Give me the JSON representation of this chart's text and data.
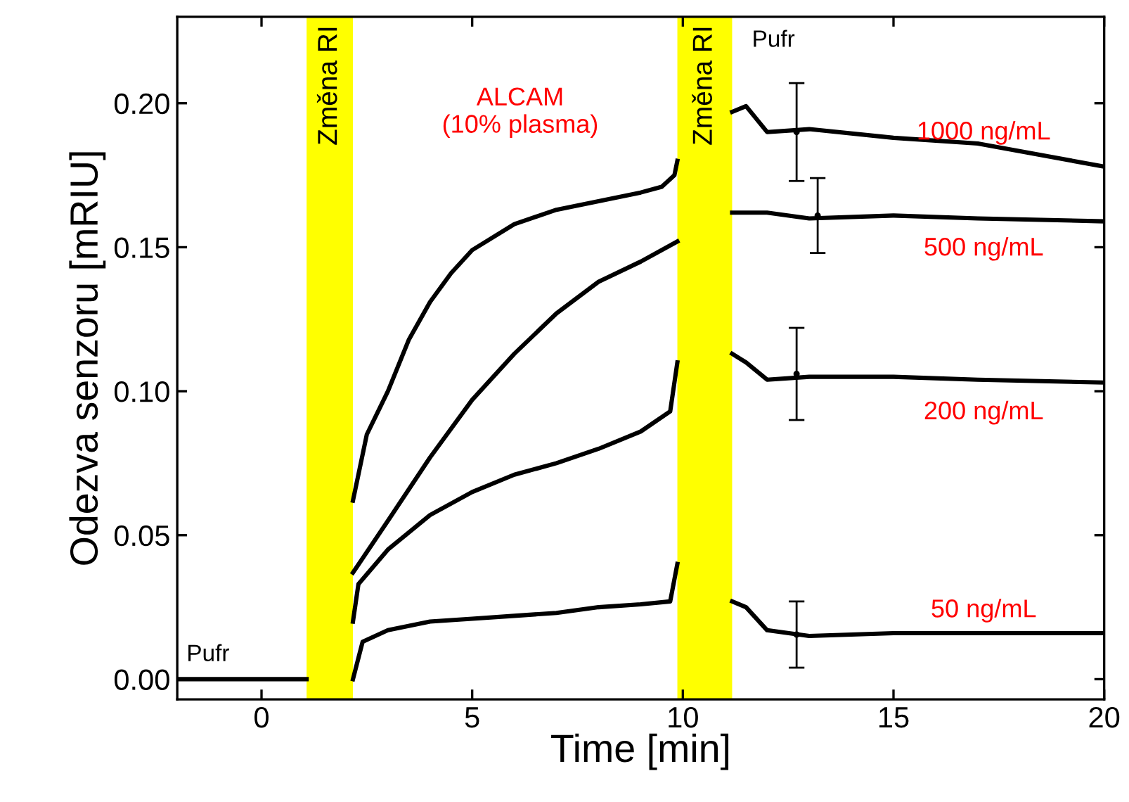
{
  "chart_data": {
    "type": "line",
    "xlabel": "Time [min]",
    "ylabel": "Odezva senzoru [mRIU]",
    "xlim": [
      -2,
      20
    ],
    "xticks": [
      0,
      5,
      10,
      15,
      20
    ],
    "ylim": [
      -0.007,
      0.23
    ],
    "yticks": [
      {
        "value": 0,
        "label": "0.00"
      },
      {
        "value": 0.05,
        "label": "0.05"
      },
      {
        "value": 0.1,
        "label": "0.10"
      },
      {
        "value": 0.15,
        "label": "0.15"
      },
      {
        "value": 0.2,
        "label": "0.20"
      }
    ],
    "grid": false,
    "line_style": "solid",
    "marker": "none",
    "bands": [
      {
        "axis": "x",
        "from": 1.07,
        "to": 2.17,
        "label": "Změna RI",
        "color": "#ffff00"
      },
      {
        "axis": "x",
        "from": 9.87,
        "to": 11.17,
        "label": "Změna RI",
        "color": "#ffff00"
      }
    ],
    "series": [
      {
        "color": "#000000",
        "x": [
          -2,
          -1,
          0,
          0.5,
          1.07
        ],
        "values": [
          0.0,
          0.0,
          0.0,
          0.0,
          0.0
        ]
      },
      {
        "color": "#000000",
        "x": [
          2.17,
          2.5,
          3,
          3.5,
          4,
          4.5,
          5,
          6,
          7,
          8,
          9,
          9.5,
          9.8,
          9.87,
          10.5,
          11.17,
          11.5,
          12,
          13,
          15,
          17,
          20
        ],
        "values": [
          0.062,
          0.085,
          0.1,
          0.118,
          0.131,
          0.141,
          0.149,
          0.158,
          0.163,
          0.166,
          0.169,
          0.171,
          0.175,
          0.18,
          null,
          0.197,
          0.199,
          0.19,
          0.191,
          0.188,
          0.186,
          0.178
        ]
      },
      {
        "color": "#000000",
        "x": [
          2.17,
          3,
          4,
          5,
          6,
          7,
          8,
          9,
          9.87,
          10.5,
          11.17,
          12,
          13,
          15,
          17,
          20
        ],
        "values": [
          0.037,
          0.055,
          0.077,
          0.097,
          0.113,
          0.127,
          0.138,
          0.145,
          0.152,
          null,
          0.162,
          0.162,
          0.16,
          0.161,
          0.16,
          0.159
        ]
      },
      {
        "color": "#000000",
        "x": [
          2.17,
          2.3,
          3,
          4,
          5,
          6,
          7,
          8,
          9,
          9.7,
          9.87,
          10.5,
          11.17,
          11.5,
          12,
          13,
          15,
          17,
          20
        ],
        "values": [
          0.02,
          0.033,
          0.045,
          0.057,
          0.065,
          0.071,
          0.075,
          0.08,
          0.086,
          0.093,
          0.11,
          null,
          0.113,
          0.11,
          0.104,
          0.105,
          0.105,
          0.104,
          0.103
        ]
      },
      {
        "color": "#000000",
        "x": [
          2.17,
          2.4,
          3,
          4,
          5,
          6,
          7,
          8,
          9,
          9.7,
          9.87,
          10.5,
          11.17,
          11.5,
          12,
          13,
          15,
          20
        ],
        "values": [
          0.0,
          0.013,
          0.017,
          0.02,
          0.021,
          0.022,
          0.023,
          0.025,
          0.026,
          0.027,
          0.04,
          null,
          0.027,
          0.025,
          0.017,
          0.015,
          0.016,
          0.016
        ]
      },
      {
        "type": "scatter",
        "marker": "circle",
        "color": "#000000",
        "x": [
          12.7,
          13.2,
          12.7,
          12.7
        ],
        "values": [
          0.19,
          0.161,
          0.106,
          0.0155
        ],
        "errors": [
          0.017,
          0.013,
          0.016,
          0.0115
        ]
      }
    ],
    "annotations": [
      "Pufr",
      "Pufr",
      "ALCAM\n(10% plasma)",
      "1000 ng/mL",
      "500 ng/mL",
      "200 ng/mL",
      "50 ng/mL"
    ]
  }
}
